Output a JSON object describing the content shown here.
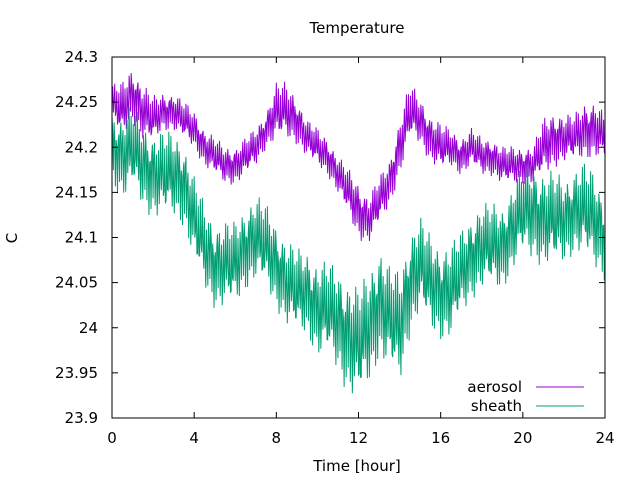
{
  "chart_data": {
    "type": "line",
    "title": "Temperature",
    "xlabel": "Time [hour]",
    "ylabel": "C",
    "xlim": [
      0,
      24
    ],
    "ylim": [
      23.9,
      24.3
    ],
    "xticks": [
      0,
      4,
      8,
      12,
      16,
      20,
      24
    ],
    "xtick_labels": [
      "0",
      "4",
      "8",
      "12",
      "16",
      "20",
      "24"
    ],
    "yticks": [
      23.9,
      23.95,
      24.0,
      24.05,
      24.1,
      24.15,
      24.2,
      24.25,
      24.3
    ],
    "ytick_labels": [
      "23.9",
      "23.95",
      "24",
      "24.05",
      "24.1",
      "24.15",
      "24.2",
      "24.25",
      "24.3"
    ],
    "grid": false,
    "legend_position": "bottom-right",
    "series": [
      {
        "name": "aerosol",
        "color": "#9400d3",
        "x": [
          0,
          0.5,
          1,
          1.5,
          2,
          2.5,
          3,
          3.5,
          4,
          4.5,
          5,
          5.5,
          6,
          6.5,
          7,
          7.5,
          8,
          8.5,
          9,
          9.5,
          10,
          10.5,
          11,
          11.5,
          12,
          12.5,
          13,
          13.5,
          14,
          14.5,
          15,
          15.5,
          16,
          16.5,
          17,
          17.5,
          18,
          18.5,
          19,
          19.5,
          20,
          20.5,
          21,
          21.5,
          22,
          22.5,
          23,
          23.5,
          24
        ],
        "values": [
          24.25,
          24.24,
          24.26,
          24.24,
          24.23,
          24.24,
          24.24,
          24.23,
          24.22,
          24.2,
          24.19,
          24.18,
          24.18,
          24.19,
          24.2,
          24.22,
          24.24,
          24.24,
          24.23,
          24.21,
          24.2,
          24.19,
          24.17,
          24.15,
          24.13,
          24.12,
          24.14,
          24.16,
          24.2,
          24.24,
          24.23,
          24.21,
          24.2,
          24.2,
          24.19,
          24.2,
          24.19,
          24.19,
          24.18,
          24.18,
          24.18,
          24.18,
          24.2,
          24.21,
          24.21,
          24.21,
          24.22,
          24.22,
          24.21
        ],
        "amplitude": [
          0.02,
          0.03,
          0.03,
          0.03,
          0.025,
          0.02,
          0.02,
          0.02,
          0.02,
          0.02,
          0.02,
          0.02,
          0.02,
          0.02,
          0.02,
          0.02,
          0.03,
          0.03,
          0.025,
          0.02,
          0.02,
          0.02,
          0.02,
          0.025,
          0.03,
          0.025,
          0.025,
          0.025,
          0.03,
          0.03,
          0.025,
          0.025,
          0.025,
          0.02,
          0.02,
          0.02,
          0.02,
          0.02,
          0.02,
          0.02,
          0.02,
          0.02,
          0.03,
          0.03,
          0.025,
          0.025,
          0.03,
          0.03,
          0.025
        ]
      },
      {
        "name": "sheath",
        "color": "#009e73",
        "x": [
          0,
          0.5,
          1,
          1.5,
          2,
          2.5,
          3,
          3.5,
          4,
          4.5,
          5,
          5.5,
          6,
          6.5,
          7,
          7.5,
          8,
          8.5,
          9,
          9.5,
          10,
          10.5,
          11,
          11.5,
          12,
          12.5,
          13,
          13.5,
          14,
          14.5,
          15,
          15.5,
          16,
          16.5,
          17,
          17.5,
          18,
          18.5,
          19,
          19.5,
          20,
          20.5,
          21,
          21.5,
          22,
          22.5,
          23,
          23.5,
          24
        ],
        "values": [
          24.2,
          24.19,
          24.2,
          24.18,
          24.17,
          24.17,
          24.17,
          24.16,
          24.12,
          24.09,
          24.07,
          24.07,
          24.07,
          24.09,
          24.1,
          24.09,
          24.07,
          24.05,
          24.04,
          24.04,
          24.02,
          24.02,
          24.01,
          23.99,
          23.98,
          24.0,
          24.03,
          24.01,
          24.0,
          24.05,
          24.07,
          24.05,
          24.04,
          24.04,
          24.06,
          24.08,
          24.09,
          24.09,
          24.09,
          24.11,
          24.13,
          24.13,
          24.12,
          24.12,
          24.12,
          24.13,
          24.13,
          24.12,
          24.1
        ],
        "amplitude": [
          0.04,
          0.045,
          0.045,
          0.045,
          0.045,
          0.045,
          0.045,
          0.045,
          0.045,
          0.045,
          0.045,
          0.045,
          0.045,
          0.045,
          0.045,
          0.045,
          0.045,
          0.045,
          0.045,
          0.045,
          0.05,
          0.05,
          0.055,
          0.06,
          0.06,
          0.06,
          0.06,
          0.055,
          0.06,
          0.055,
          0.05,
          0.05,
          0.05,
          0.05,
          0.045,
          0.045,
          0.045,
          0.045,
          0.045,
          0.045,
          0.05,
          0.05,
          0.05,
          0.05,
          0.045,
          0.045,
          0.05,
          0.05,
          0.045
        ]
      }
    ]
  }
}
